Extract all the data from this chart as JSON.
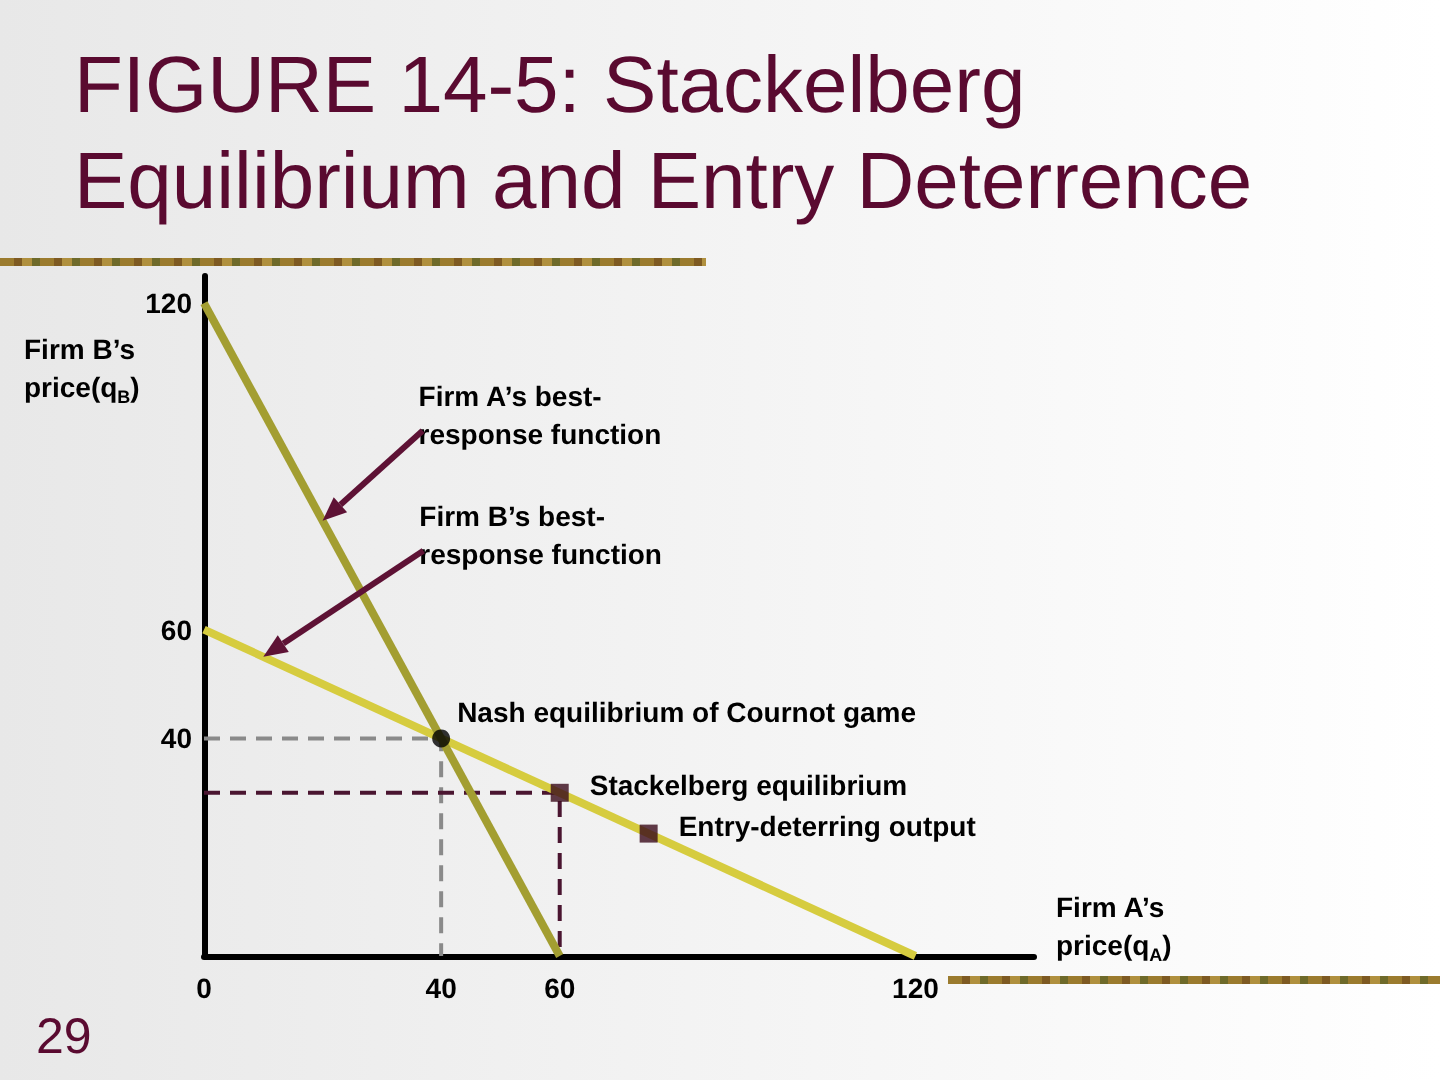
{
  "chart_data": {
    "type": "line",
    "title": "FIGURE 14-5: Stackelberg Equilibrium and Entry Deterrence",
    "xlabel": "Firm A’s\nprice(q$_{A}$)",
    "ylabel": "Firm B’s\nprice(q$_{B}$)",
    "xlim": [
      0,
      140
    ],
    "ylim": [
      0,
      125
    ],
    "xticks": [
      0,
      40,
      60,
      120
    ],
    "yticks": [
      40,
      60,
      120
    ],
    "series": [
      {
        "x": [
          0,
          40,
          40
        ],
        "values": [
          40,
          40,
          0
        ],
        "color": "#8a8a8a",
        "line_style": "dashed",
        "marker": "none"
      },
      {
        "x": [
          0,
          60,
          60
        ],
        "values": [
          30,
          30,
          0
        ],
        "color": "#4a1530",
        "line_style": "dashed",
        "marker": "none"
      },
      {
        "x": [
          0,
          120
        ],
        "values": [
          60,
          0
        ],
        "color": "#d6cc3f",
        "line_style": "solid",
        "marker": "none"
      },
      {
        "x": [
          0,
          60
        ],
        "values": [
          120,
          0
        ],
        "color": "#a39e31",
        "line_style": "solid",
        "marker": "none"
      },
      {
        "type": "scatter",
        "x": [
          40
        ],
        "values": [
          40
        ],
        "color": "#000000",
        "marker": "circle"
      },
      {
        "type": "scatter",
        "x": [
          60,
          75
        ],
        "values": [
          30,
          22.5
        ],
        "color": "#3a0a1a",
        "marker": "square"
      }
    ],
    "annotations": [
      "Firm A’s best-\nresponse function",
      "Firm B’s best-\nresponse function",
      {
        "text": "Nash equilibrium of Cournot game",
        "x": 40,
        "y": 40
      },
      {
        "text": "Stackelberg equilibrium",
        "x": 60,
        "y": 30
      },
      {
        "text": "Entry-deterring output",
        "x": 75,
        "y": 22.5
      },
      "29"
    ]
  }
}
